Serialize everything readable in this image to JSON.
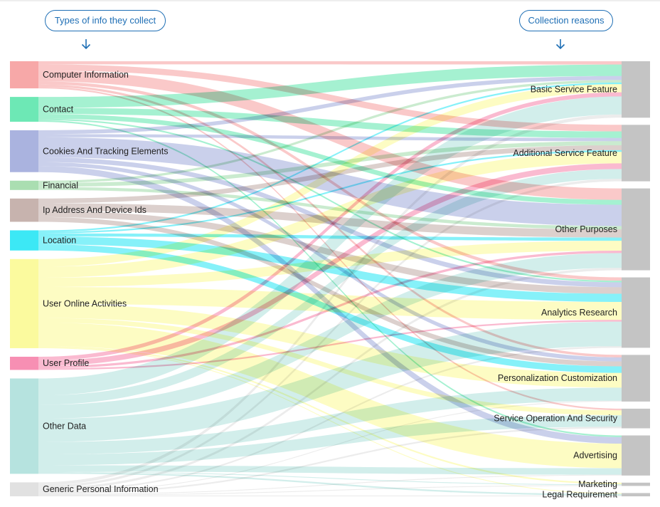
{
  "headers": {
    "left": "Types of info they collect",
    "right": "Collection reasons"
  },
  "icons": {
    "header_arrow": "arrow-down-icon"
  },
  "colors": {
    "header_accent": "#1f6fb5",
    "target_node": "#c4c4c4"
  },
  "diagram": {
    "type": "sankey",
    "sources": [
      {
        "name": "Computer Information",
        "color": "#f7a8a8"
      },
      {
        "name": "Contact",
        "color": "#6de8b5"
      },
      {
        "name": "Cookies And Tracking Elements",
        "color": "#aab3df"
      },
      {
        "name": "Financial",
        "color": "#aadeb1"
      },
      {
        "name": "Ip Address And Device Ids",
        "color": "#c7b3ae"
      },
      {
        "name": "Location",
        "color": "#3ce8f5"
      },
      {
        "name": "User Online Activities",
        "color": "#fbfa9e"
      },
      {
        "name": "User Profile",
        "color": "#f78fb3"
      },
      {
        "name": "Other Data",
        "color": "#b6e3df"
      },
      {
        "name": "Generic Personal Information",
        "color": "#e1e1e1"
      }
    ],
    "targets": [
      {
        "name": "Basic Service Feature"
      },
      {
        "name": "Additional Service Feature"
      },
      {
        "name": "Other Purposes"
      },
      {
        "name": "Analytics Research"
      },
      {
        "name": "Personalization Customization"
      },
      {
        "name": "Service Operation And Security"
      },
      {
        "name": "Advertising"
      },
      {
        "name": "Marketing"
      },
      {
        "name": "Legal Requirement"
      }
    ],
    "flows": [
      {
        "source": 0,
        "target": 0,
        "value": 4
      },
      {
        "source": 0,
        "target": 1,
        "value": 8
      },
      {
        "source": 0,
        "target": 2,
        "value": 14
      },
      {
        "source": 0,
        "target": 3,
        "value": 4
      },
      {
        "source": 0,
        "target": 4,
        "value": 3
      },
      {
        "source": 0,
        "target": 5,
        "value": 2
      },
      {
        "source": 1,
        "target": 0,
        "value": 14
      },
      {
        "source": 1,
        "target": 1,
        "value": 8
      },
      {
        "source": 1,
        "target": 2,
        "value": 6
      },
      {
        "source": 1,
        "target": 3,
        "value": 2
      },
      {
        "source": 1,
        "target": 6,
        "value": 2
      },
      {
        "source": 2,
        "target": 0,
        "value": 5
      },
      {
        "source": 2,
        "target": 1,
        "value": 4
      },
      {
        "source": 2,
        "target": 2,
        "value": 26
      },
      {
        "source": 2,
        "target": 3,
        "value": 6
      },
      {
        "source": 2,
        "target": 4,
        "value": 5
      },
      {
        "source": 2,
        "target": 6,
        "value": 8
      },
      {
        "source": 3,
        "target": 0,
        "value": 3
      },
      {
        "source": 3,
        "target": 1,
        "value": 5
      },
      {
        "source": 3,
        "target": 2,
        "value": 4
      },
      {
        "source": 4,
        "target": 1,
        "value": 6
      },
      {
        "source": 4,
        "target": 2,
        "value": 10
      },
      {
        "source": 4,
        "target": 3,
        "value": 8
      },
      {
        "source": 4,
        "target": 4,
        "value": 6
      },
      {
        "source": 5,
        "target": 0,
        "value": 2
      },
      {
        "source": 5,
        "target": 1,
        "value": 2
      },
      {
        "source": 5,
        "target": 2,
        "value": 4
      },
      {
        "source": 5,
        "target": 3,
        "value": 10
      },
      {
        "source": 5,
        "target": 4,
        "value": 8
      },
      {
        "source": 6,
        "target": 0,
        "value": 10
      },
      {
        "source": 6,
        "target": 1,
        "value": 14
      },
      {
        "source": 6,
        "target": 2,
        "value": 12
      },
      {
        "source": 6,
        "target": 3,
        "value": 22
      },
      {
        "source": 6,
        "target": 4,
        "value": 18
      },
      {
        "source": 6,
        "target": 5,
        "value": 6
      },
      {
        "source": 6,
        "target": 6,
        "value": 30
      },
      {
        "source": 6,
        "target": 7,
        "value": 2
      },
      {
        "source": 6,
        "target": 8,
        "value": 1
      },
      {
        "source": 7,
        "target": 0,
        "value": 5
      },
      {
        "source": 7,
        "target": 1,
        "value": 7
      },
      {
        "source": 7,
        "target": 2,
        "value": 3
      },
      {
        "source": 7,
        "target": 3,
        "value": 2
      },
      {
        "source": 8,
        "target": 0,
        "value": 22
      },
      {
        "source": 8,
        "target": 1,
        "value": 12
      },
      {
        "source": 8,
        "target": 2,
        "value": 18
      },
      {
        "source": 8,
        "target": 3,
        "value": 30
      },
      {
        "source": 8,
        "target": 4,
        "value": 16
      },
      {
        "source": 8,
        "target": 5,
        "value": 14
      },
      {
        "source": 8,
        "target": 6,
        "value": 8
      },
      {
        "source": 8,
        "target": 7,
        "value": 1
      },
      {
        "source": 8,
        "target": 8,
        "value": 2
      },
      {
        "source": 9,
        "target": 0,
        "value": 4
      },
      {
        "source": 9,
        "target": 1,
        "value": 3
      },
      {
        "source": 9,
        "target": 2,
        "value": 3
      },
      {
        "source": 9,
        "target": 3,
        "value": 2
      },
      {
        "source": 9,
        "target": 4,
        "value": 1
      },
      {
        "source": 9,
        "target": 5,
        "value": 2
      },
      {
        "source": 9,
        "target": 6,
        "value": 1
      },
      {
        "source": 9,
        "target": 7,
        "value": 1
      },
      {
        "source": 9,
        "target": 8,
        "value": 1
      }
    ]
  }
}
